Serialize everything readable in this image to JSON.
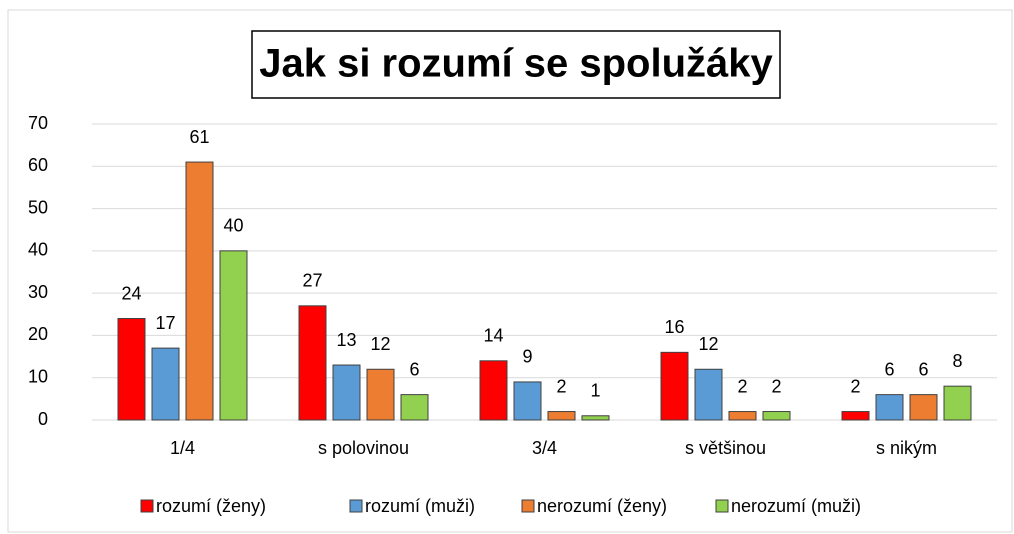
{
  "chart_data": {
    "type": "bar",
    "title": "Jak si rozumí se spolužáky",
    "categories": [
      "1/4",
      "s polovinou",
      "3/4",
      "s většinou",
      "s nikým"
    ],
    "series": [
      {
        "name": "rozumí (ženy)",
        "color": "#ff0000",
        "values": [
          24,
          27,
          14,
          16,
          2
        ]
      },
      {
        "name": "rozumí (muži)",
        "color": "#5b9bd5",
        "values": [
          17,
          13,
          9,
          12,
          6
        ]
      },
      {
        "name": "nerozumí (ženy)",
        "color": "#ed7d31",
        "values": [
          61,
          12,
          2,
          2,
          6
        ]
      },
      {
        "name": "nerozumí (muži)",
        "color": "#92d050",
        "values": [
          40,
          6,
          1,
          2,
          8
        ]
      }
    ],
    "ylim": [
      0,
      70
    ],
    "yticks": [
      0,
      10,
      20,
      30,
      40,
      50,
      60,
      70
    ],
    "grid": true,
    "legend": "bottom"
  }
}
